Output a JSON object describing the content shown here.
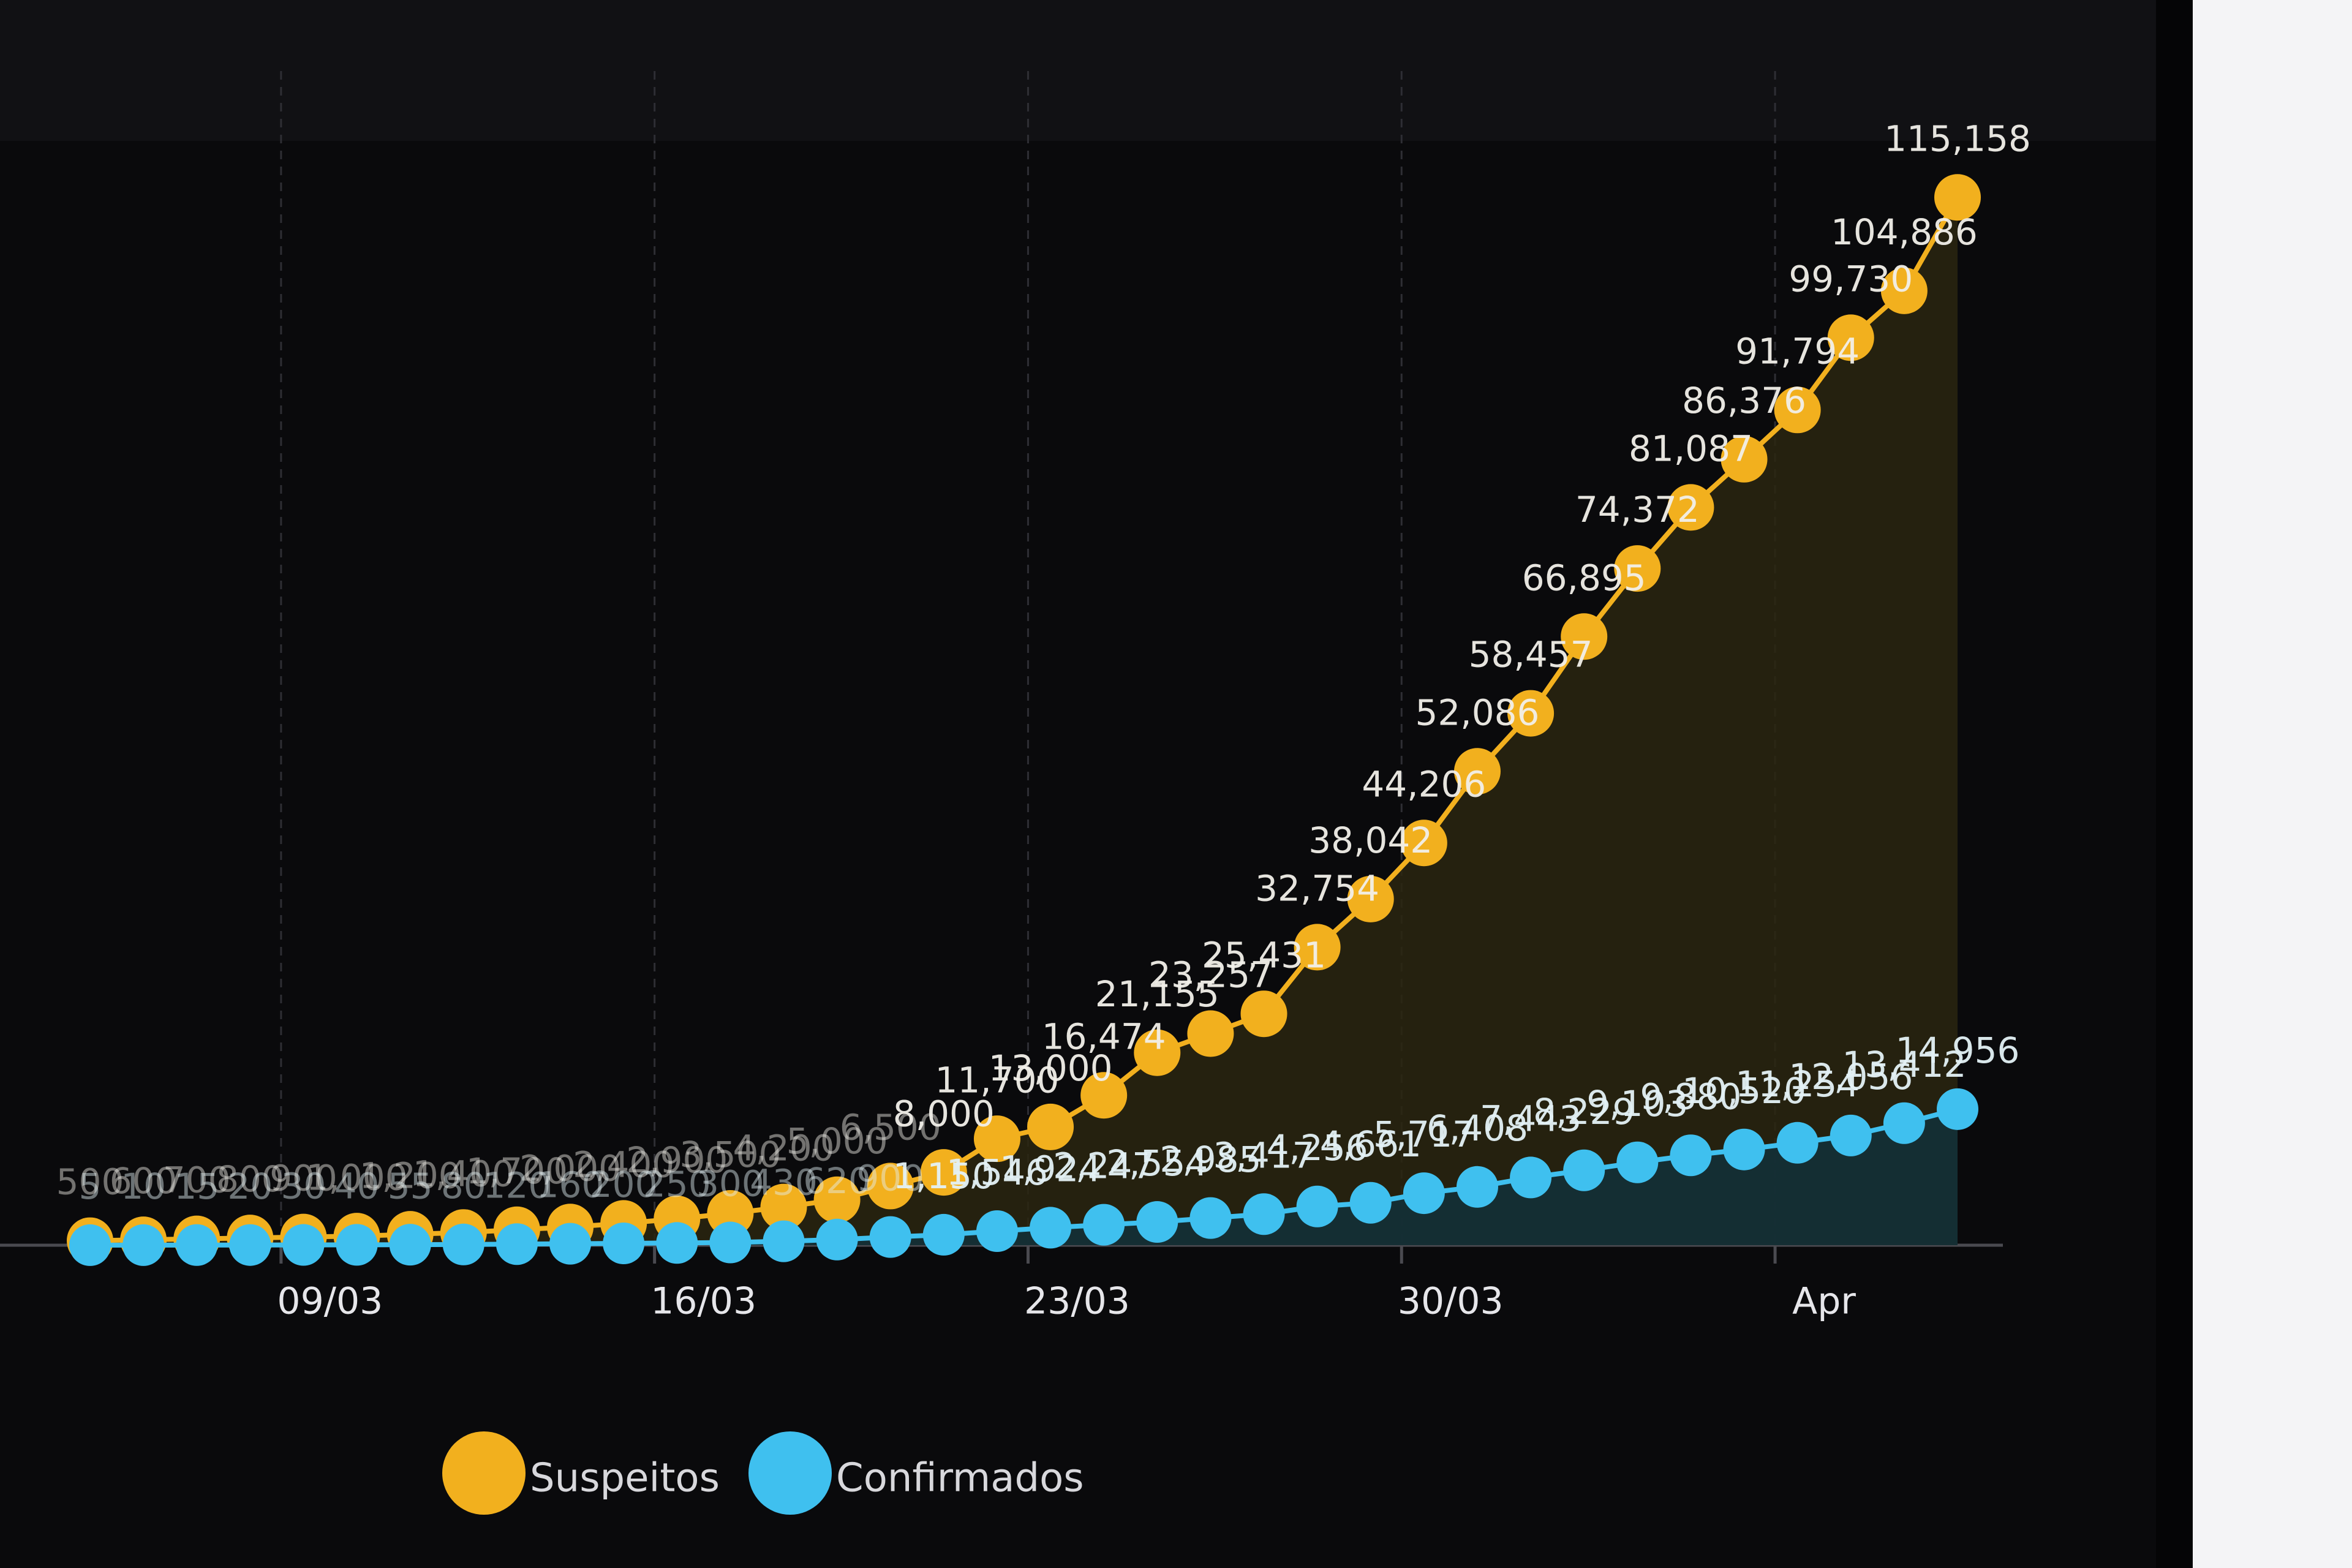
{
  "chart_data": {
    "type": "line",
    "categories": [
      null,
      null,
      null,
      null,
      "09/03",
      null,
      null,
      null,
      null,
      null,
      null,
      "16/03",
      null,
      null,
      null,
      null,
      null,
      null,
      "23/03",
      null,
      null,
      null,
      null,
      null,
      null,
      "30/03",
      null,
      null,
      null,
      null,
      null,
      null,
      "Apr",
      null,
      null,
      null
    ],
    "ylim": [
      0,
      125000
    ],
    "legend": "bottom",
    "area": true,
    "series": [
      {
        "name": "Suspeitos",
        "color": "#f2b01e",
        "values": [
          500,
          600,
          700,
          800,
          900,
          1000,
          1200,
          1400,
          1700,
          2000,
          2400,
          2900,
          3500,
          4200,
          5000,
          6500,
          8000,
          11700,
          13000,
          16474,
          21155,
          23257,
          25431,
          32754,
          38042,
          44206,
          52086,
          58457,
          66895,
          74372,
          81087,
          86376,
          91794,
          99730,
          104886,
          115158
        ],
        "value_labels": [
          "500",
          "600",
          "700",
          "800",
          "900",
          "1,000",
          "1,200",
          "1,400",
          "1,700",
          "2,000",
          "2,400",
          "2,900",
          "3,500",
          "4,200",
          "5,000",
          "6,500",
          "8,000",
          "11,700",
          "13,000",
          "16,474",
          "21,155",
          "23,257",
          "25,431",
          "32,754",
          "38,042",
          "44,206",
          "52,086",
          "58,457",
          "66,895",
          "74,372",
          "81,087",
          "86,376",
          "91,794",
          "99,730",
          "104,886",
          "115,158"
        ]
      },
      {
        "name": "Confirmados",
        "color": "#3fc0ef",
        "values": [
          5,
          10,
          15,
          20,
          30,
          40,
          55,
          80,
          120,
          160,
          200,
          250,
          300,
          430,
          620,
          900,
          1150,
          1546,
          1924,
          2247,
          2554,
          2985,
          3417,
          4256,
          4661,
          5717,
          6408,
          7443,
          8229,
          9103,
          9880,
          10520,
          11254,
          12056,
          13412,
          14956
        ],
        "value_labels": [
          "5",
          "10",
          "15",
          "20",
          "30",
          "40",
          "55",
          "80",
          "120",
          "160",
          "200",
          "250",
          "300",
          "430",
          "620",
          "900",
          "1,150",
          "1,546",
          "1,924",
          "2,247",
          "2,554",
          "2,985",
          "3,417",
          "4,256",
          "4,661",
          "5,717",
          "6,408",
          "7,443",
          "8,229",
          "9,103",
          "9,880",
          "10,520",
          "11,254",
          "12,056",
          "13,412",
          "14,956"
        ]
      }
    ]
  }
}
